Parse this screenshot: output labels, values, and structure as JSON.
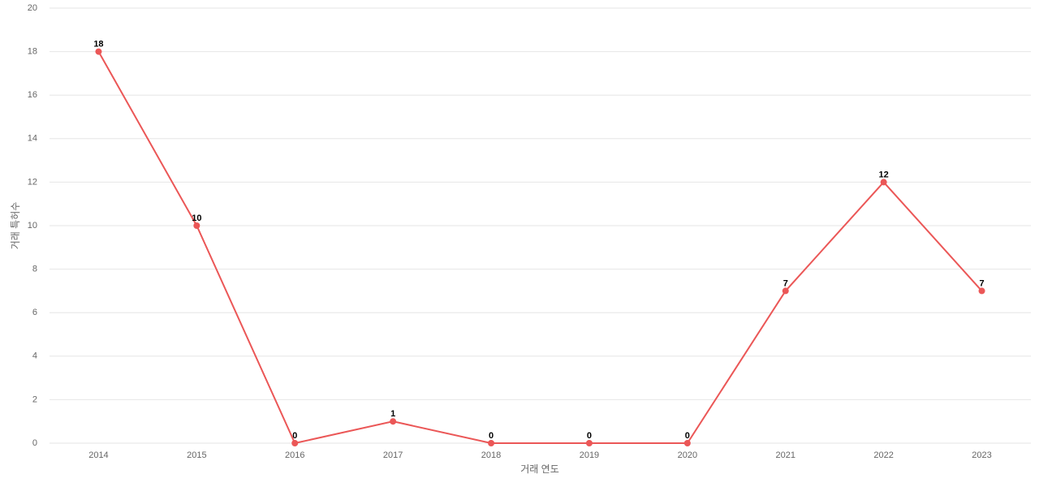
{
  "chart_data": {
    "type": "line",
    "x_label": "거래 연도",
    "y_label": "거래 특허수",
    "categories": [
      "2014",
      "2015",
      "2016",
      "2017",
      "2018",
      "2019",
      "2020",
      "2021",
      "2022",
      "2023"
    ],
    "values": [
      18,
      10,
      0,
      1,
      0,
      0,
      0,
      7,
      12,
      7
    ],
    "color": "#eb5757",
    "ylim": [
      0,
      20
    ],
    "yticks": [
      0,
      2,
      4,
      6,
      8,
      10,
      12,
      14,
      16,
      18,
      20
    ],
    "grid": true
  }
}
